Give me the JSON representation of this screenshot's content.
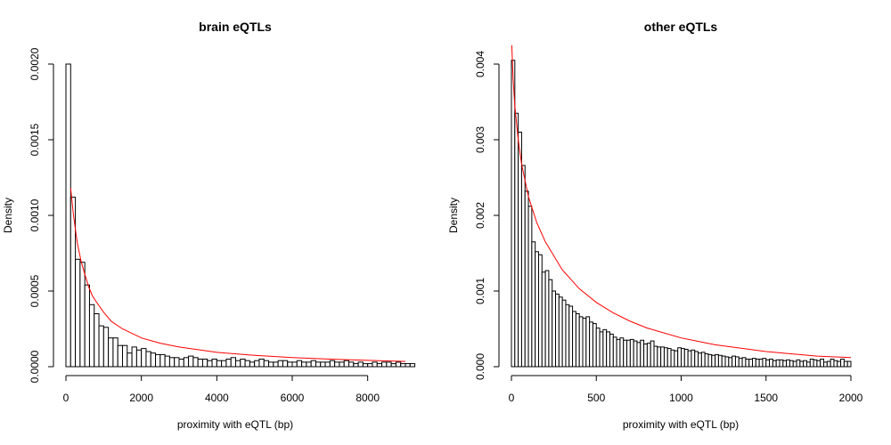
{
  "chart_data": [
    {
      "type": "bar",
      "subtype": "histogram",
      "title": "brain eQTLs",
      "xlabel": "proximity with eQTL (bp)",
      "ylabel": "Density",
      "xlim": [
        0,
        9000
      ],
      "ylim": [
        0,
        0.002
      ],
      "bin_width": 125,
      "x_ticks": [
        "0",
        "2000",
        "4000",
        "6000",
        "8000"
      ],
      "y_ticks": [
        "0.0000",
        "0.0005",
        "0.0010",
        "0.0015",
        "0.0020"
      ],
      "values": [
        0.002,
        0.00112,
        0.00071,
        0.00069,
        0.00054,
        0.00041,
        0.00035,
        0.00027,
        0.00026,
        0.00019,
        0.00019,
        0.00014,
        0.00014,
        9e-05,
        0.00013,
        0.00011,
        0.00012,
        0.0001,
        9e-05,
        8e-05,
        8e-05,
        7e-05,
        6e-05,
        6e-05,
        5e-05,
        6e-05,
        7e-05,
        6e-05,
        5e-05,
        5e-05,
        4e-05,
        5e-05,
        4e-05,
        4e-05,
        5e-05,
        6e-05,
        4e-05,
        5e-05,
        4e-05,
        3e-05,
        4e-05,
        5e-05,
        4e-05,
        3e-05,
        3e-05,
        4e-05,
        4e-05,
        3e-05,
        3e-05,
        4e-05,
        3e-05,
        3e-05,
        4e-05,
        3e-05,
        3e-05,
        3e-05,
        4e-05,
        3e-05,
        3e-05,
        4e-05,
        3e-05,
        2e-05,
        3e-05,
        2e-05,
        2e-05,
        3e-05,
        2e-05,
        3e-05,
        3e-05,
        2e-05,
        3e-05,
        2e-05,
        2e-05,
        2e-05
      ],
      "fit": {
        "color": "#ff0000",
        "x": [
          125,
          200,
          300,
          400,
          500,
          600,
          700,
          800,
          1000,
          1200,
          1500,
          2000,
          2500,
          3000,
          4000,
          5000,
          6000,
          7000,
          8000,
          9000
        ],
        "y": [
          0.00118,
          0.001,
          0.00082,
          0.0007,
          0.00061,
          0.00053,
          0.00047,
          0.00043,
          0.00036,
          0.0003,
          0.00025,
          0.00019,
          0.000155,
          0.00013,
          9.5e-05,
          7.5e-05,
          6e-05,
          5e-05,
          4.2e-05,
          3.5e-05
        ]
      }
    },
    {
      "type": "bar",
      "subtype": "histogram",
      "title": "other eQTLs",
      "xlabel": "proximity with eQTL (bp)",
      "ylabel": "Density",
      "xlim": [
        0,
        2000
      ],
      "ylim": [
        0,
        0.004
      ],
      "bin_width": 20,
      "x_ticks": [
        "0",
        "500",
        "1000",
        "1500",
        "2000"
      ],
      "y_ticks": [
        "0.000",
        "0.001",
        "0.002",
        "0.003",
        "0.004"
      ],
      "values": [
        0.00405,
        0.00335,
        0.0031,
        0.00266,
        0.00232,
        0.00212,
        0.00165,
        0.00152,
        0.00148,
        0.00125,
        0.00127,
        0.00115,
        0.001,
        0.00096,
        0.00092,
        0.00088,
        0.00082,
        0.0008,
        0.00073,
        0.0007,
        0.00066,
        0.00064,
        0.00066,
        0.00059,
        0.00057,
        0.00051,
        0.00046,
        0.00049,
        0.00046,
        0.00043,
        0.00039,
        0.00036,
        0.00038,
        0.00035,
        0.00035,
        0.00036,
        0.00034,
        0.00032,
        0.00035,
        0.0003,
        0.00031,
        0.00034,
        0.00027,
        0.00026,
        0.00026,
        0.00025,
        0.00024,
        0.00022,
        0.00021,
        0.00025,
        0.00024,
        0.00023,
        0.00021,
        0.00022,
        0.0002,
        0.00018,
        0.00019,
        0.00017,
        0.00016,
        0.00015,
        0.00016,
        0.00015,
        0.00014,
        0.00013,
        0.00012,
        0.00014,
        0.00013,
        0.00011,
        0.00012,
        0.0001,
        0.0001,
        0.00011,
        0.0001,
        0.0001,
        0.00011,
        9e-05,
        0.0001,
        8e-05,
        9e-05,
        9e-05,
        8e-05,
        9e-05,
        8e-05,
        7e-05,
        9e-05,
        7e-05,
        8e-05,
        6e-05,
        0.0001,
        9e-05,
        8e-05,
        0.0001,
        6e-05,
        7e-05,
        0.0001,
        8e-05,
        7e-05,
        0.0001,
        7e-05,
        7e-05
      ],
      "fit": {
        "color": "#ff0000",
        "x": [
          2,
          10,
          20,
          40,
          60,
          100,
          150,
          200,
          300,
          400,
          500,
          600,
          700,
          800,
          1000,
          1200,
          1500,
          1800,
          2000
        ],
        "y": [
          0.00425,
          0.0038,
          0.00345,
          0.003,
          0.00268,
          0.00225,
          0.0019,
          0.00165,
          0.00128,
          0.00103,
          0.00085,
          0.00071,
          0.0006,
          0.00051,
          0.00038,
          0.00029,
          0.0002,
          0.00014,
          0.00012
        ]
      }
    }
  ]
}
